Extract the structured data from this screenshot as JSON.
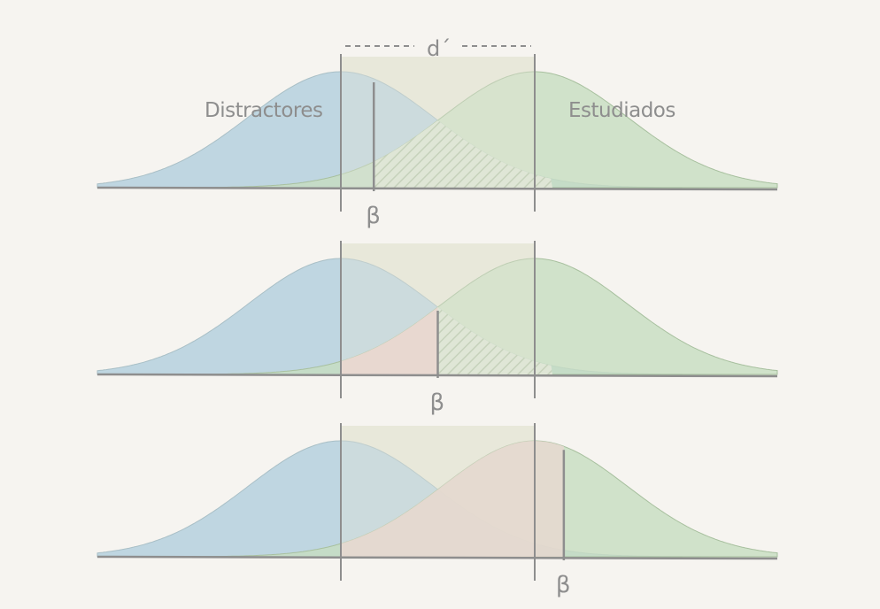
{
  "labels": {
    "d_prime": "d´",
    "distractors": "Distractores",
    "studied": "Estudiados",
    "beta": "β"
  },
  "colors": {
    "background": "#f6f4f0",
    "distractor_fill": "#bcd4df",
    "studied_fill": "#c7ddc1",
    "overlap_band": "#e9e9da",
    "false_alarm_fill": "#ead7d0",
    "hatch": "#cfd8c4",
    "axis": "#8e8e8e"
  },
  "panels": [
    {
      "name": "panel-conservative-low",
      "beta_label": "β",
      "criterion": 0.17
    },
    {
      "name": "panel-neutral",
      "beta_label": "β",
      "criterion": 0.5
    },
    {
      "name": "panel-liberal-high",
      "beta_label": "β",
      "criterion": 1.15
    }
  ]
}
